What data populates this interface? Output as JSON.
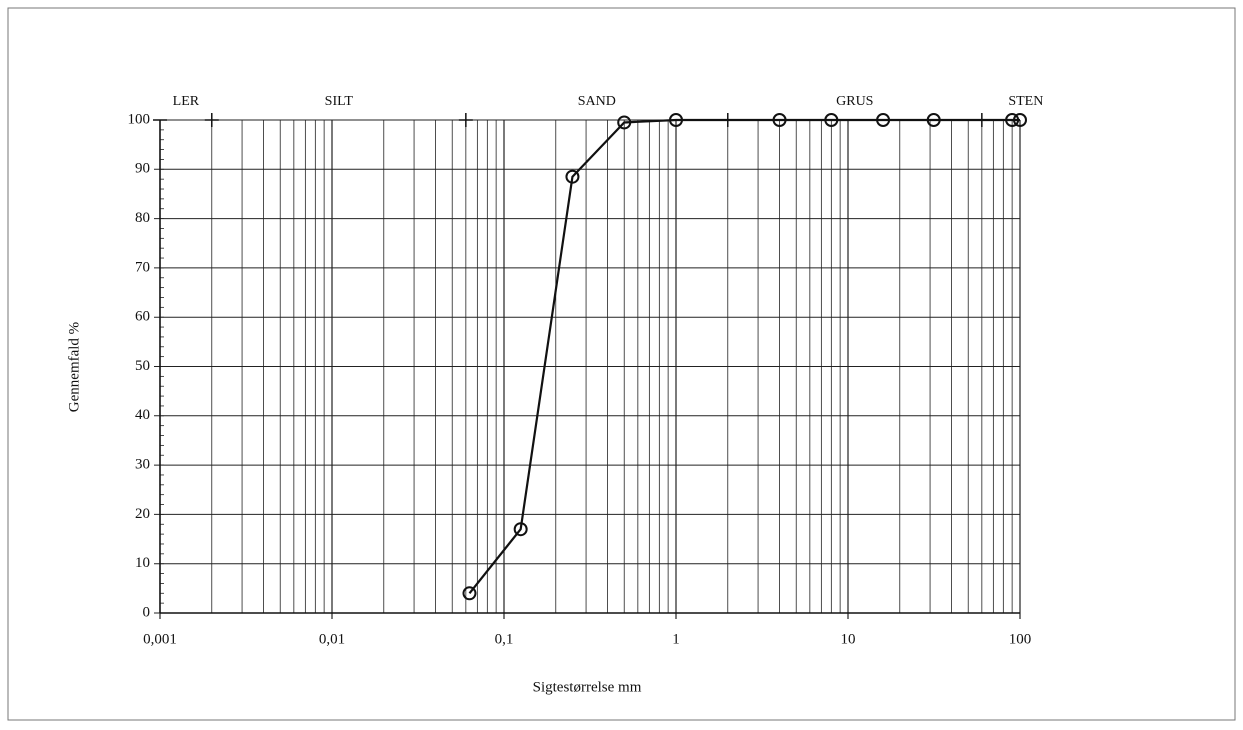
{
  "chart_data": {
    "type": "line",
    "log_x": true,
    "grid": true,
    "x_label": "Sigtestørrelse mm",
    "y_label": "Gennemfald %",
    "x": [
      0.063,
      0.125,
      0.25,
      0.5,
      1,
      4,
      8,
      16,
      31.5,
      90,
      100
    ],
    "series": [
      {
        "name": null,
        "color": "#111111",
        "values": [
          4,
          17,
          88.5,
          99.5,
          100,
          100,
          100,
          100,
          100,
          100,
          100
        ]
      }
    ],
    "xlim": [
      0.001,
      100
    ],
    "ylim": [
      0,
      100
    ],
    "xticks": [
      {
        "value": 0.001,
        "label": "0,001"
      },
      {
        "value": 0.01,
        "label": "0,01"
      },
      {
        "value": 0.1,
        "label": "0,1"
      },
      1,
      10,
      100
    ],
    "yticks": [
      0,
      10,
      20,
      30,
      40,
      50,
      60,
      70,
      80,
      90,
      100
    ],
    "zones": {
      "labels": [
        "LER",
        "SILT",
        "SAND",
        "GRUS",
        "STEN"
      ],
      "boundaries": [
        0.002,
        0.06,
        2,
        60
      ]
    }
  }
}
